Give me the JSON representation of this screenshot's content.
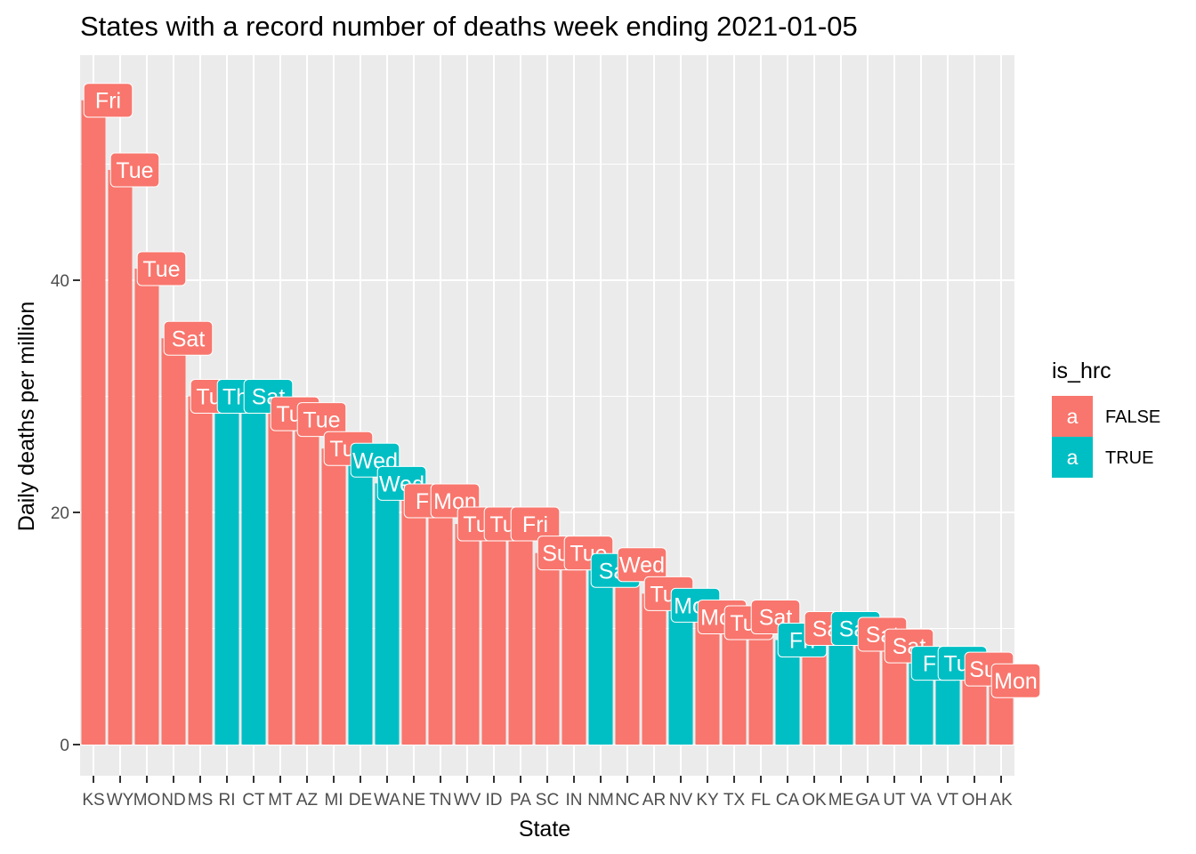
{
  "chart_data": {
    "type": "bar",
    "title": "States with a record number of deaths week ending 2021-01-05",
    "xlabel": "State",
    "ylabel": "Daily deaths per million",
    "ylim": [
      -2.5,
      59
    ],
    "yticks": [
      0,
      20,
      40
    ],
    "grid": true,
    "legend_position": "right",
    "legend": {
      "title": "is_hrc",
      "key_glyph": "a",
      "entries": [
        {
          "label": "FALSE",
          "color": "#F8766D"
        },
        {
          "label": "TRUE",
          "color": "#00BFC4"
        }
      ]
    },
    "categories": [
      "KS",
      "WY",
      "MO",
      "ND",
      "MS",
      "RI",
      "CT",
      "MT",
      "AZ",
      "MI",
      "DE",
      "WA",
      "NE",
      "TN",
      "WV",
      "ID",
      "PA",
      "SC",
      "IN",
      "NM",
      "NC",
      "AR",
      "NV",
      "KY",
      "TX",
      "FL",
      "CA",
      "OK",
      "ME",
      "GA",
      "UT",
      "VA",
      "VT",
      "OH",
      "AK"
    ],
    "values": [
      55.5,
      49.5,
      41,
      35,
      30,
      30,
      30,
      28.5,
      28,
      25.5,
      24.5,
      22.5,
      21,
      21,
      19,
      19,
      19,
      16.5,
      16.5,
      15,
      15.5,
      13,
      12,
      11,
      10.5,
      11,
      9,
      10,
      10,
      9.5,
      8.5,
      7,
      7,
      6.5,
      5.5
    ],
    "is_hrc": [
      false,
      false,
      false,
      false,
      false,
      true,
      true,
      false,
      false,
      false,
      true,
      true,
      false,
      false,
      false,
      false,
      false,
      false,
      false,
      true,
      false,
      false,
      true,
      false,
      false,
      false,
      true,
      false,
      true,
      false,
      false,
      true,
      true,
      false,
      false
    ],
    "day_labels": [
      "Fri",
      "Tue",
      "Tue",
      "Sat",
      "Tue",
      "Thu",
      "Sat",
      "Tue",
      "Tue",
      "Tue",
      "Wed",
      "Wed",
      "Fri",
      "Mon",
      "Tue",
      "Tue",
      "Fri",
      "Sun",
      "Tue",
      "Sat",
      "Wed",
      "Tue",
      "Mon",
      "Mon",
      "Tue",
      "Sat",
      "Fri",
      "Sat",
      "Sat",
      "Sat",
      "Sat",
      "Fri",
      "Tue",
      "Sun",
      "Mon"
    ]
  }
}
